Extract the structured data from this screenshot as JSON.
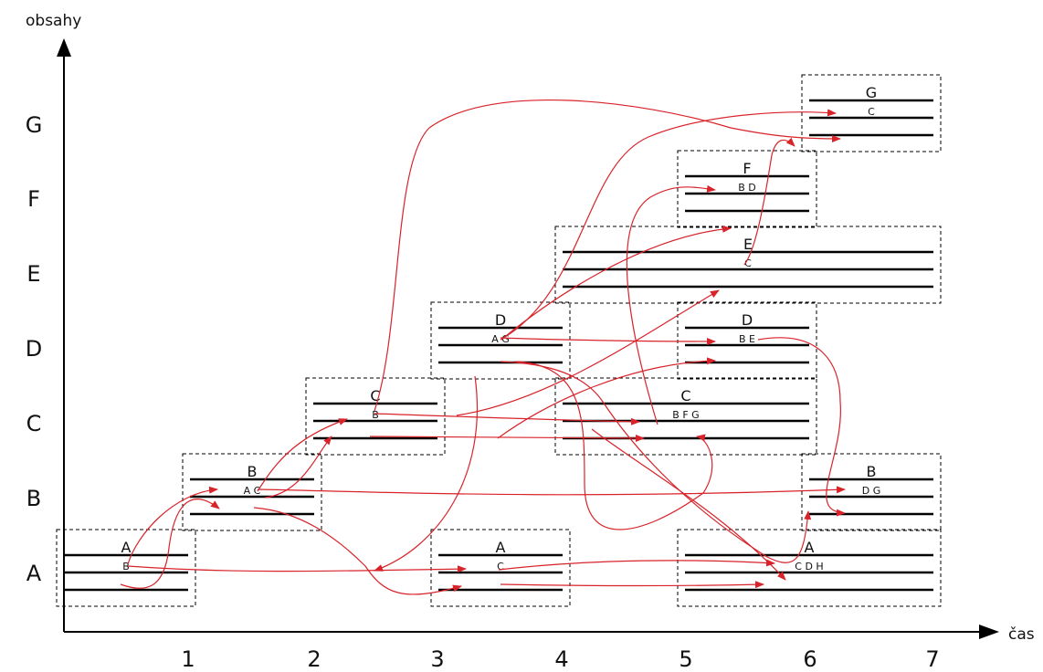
{
  "axes": {
    "y_title": "obsahy",
    "x_title": "čas",
    "x_ticks": [
      "1",
      "2",
      "3",
      "4",
      "5",
      "6",
      "7"
    ],
    "y_ticks": [
      "A",
      "B",
      "C",
      "D",
      "E",
      "F",
      "G"
    ]
  },
  "blocks": [
    {
      "id": "A1",
      "title": "A",
      "sub": "B"
    },
    {
      "id": "B1",
      "title": "B",
      "sub": "A C"
    },
    {
      "id": "C1",
      "title": "C",
      "sub": "B"
    },
    {
      "id": "D1",
      "title": "D",
      "sub": "A G"
    },
    {
      "id": "A2",
      "title": "A",
      "sub": "C"
    },
    {
      "id": "E1",
      "title": "E",
      "sub": "C"
    },
    {
      "id": "C2",
      "title": "C",
      "sub": "B F G"
    },
    {
      "id": "F1",
      "title": "F",
      "sub": "B D"
    },
    {
      "id": "D2",
      "title": "D",
      "sub": "B E"
    },
    {
      "id": "A3",
      "title": "A",
      "sub": "C D H"
    },
    {
      "id": "G1",
      "title": "G",
      "sub": "C"
    },
    {
      "id": "B2",
      "title": "B",
      "sub": "D G"
    }
  ],
  "colors": {
    "axis": "#000000",
    "staff": "#000000",
    "box": "#000000",
    "arrow": "#d8232a"
  }
}
